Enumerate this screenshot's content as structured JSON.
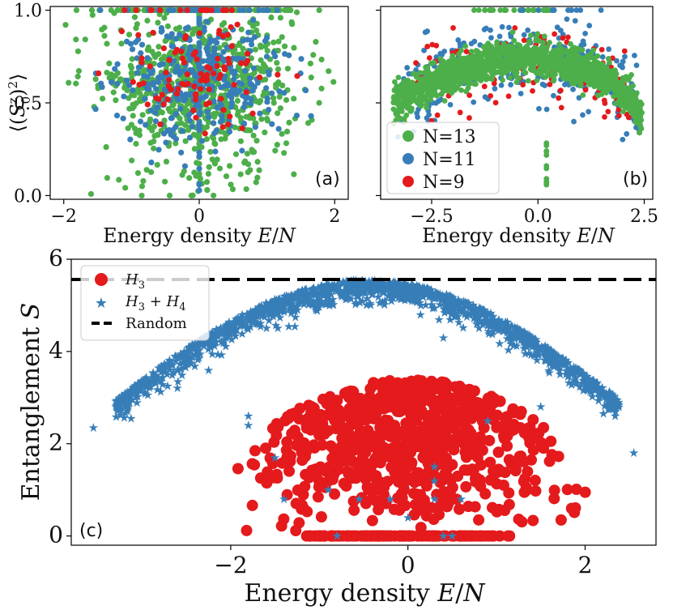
{
  "colors": {
    "n13": "#4daf4a",
    "n11": "#377eb8",
    "n9": "#e41a1c",
    "h3": "#e41a1c",
    "h34": "#377eb8",
    "random": "#000000"
  },
  "chart_data": [
    {
      "id": "a",
      "type": "scatter",
      "panel_label": "(a)",
      "xlabel": "Energy density E/N",
      "ylabel": "⟨(S_0^z)^2⟩",
      "xlim": [
        -2.2,
        2.2
      ],
      "ylim": [
        -0.02,
        1.02
      ],
      "xticks": [
        -2,
        0,
        2
      ],
      "xtick_labels": [
        "−2",
        "0",
        "2"
      ],
      "yticks": [
        0.0,
        0.5,
        1.0
      ],
      "ytick_labels": [
        "0.0",
        "0.5",
        "1.0"
      ],
      "series": [
        {
          "name": "N=13",
          "color": "n13",
          "n": 900,
          "xrange": [
            -2.0,
            2.0
          ],
          "ycenter": 0.55,
          "yspread": 0.45,
          "note": "broad cloud spanning 0 to 1"
        },
        {
          "name": "N=11",
          "color": "n11",
          "n": 380,
          "xrange": [
            -1.8,
            1.8
          ],
          "ycenter": 0.6,
          "yspread": 0.35,
          "note": "cloud 0.2 to 1.0, column at E=0"
        },
        {
          "name": "N=9",
          "color": "n9",
          "n": 110,
          "xrange": [
            -1.6,
            1.6
          ],
          "ycenter": 0.6,
          "yspread": 0.3,
          "note": "sparse, 0.3 to 1.0"
        }
      ]
    },
    {
      "id": "b",
      "type": "scatter",
      "panel_label": "(b)",
      "xlabel": "Energy density E/N",
      "xlim": [
        -3.7,
        2.7
      ],
      "ylim": [
        -0.02,
        1.02
      ],
      "xticks": [
        -2.5,
        0.0,
        2.5
      ],
      "xtick_labels": [
        "−2.5",
        "0.0",
        "2.5"
      ],
      "legend": {
        "location": "lower-left",
        "entries": [
          "N=13",
          "N=11",
          "N=9"
        ]
      },
      "series": [
        {
          "name": "N=13",
          "color": "n13",
          "n": 1500,
          "band": "arch from 0.5 at E=-3.4 up to 0.72 near E=0.7, down to 0.48 at E=2.4",
          "extra": "column at E=0.2 from 0.0 to 0.3, points at 1.0 near E=-1.5..0.5"
        },
        {
          "name": "N=11",
          "color": "n11",
          "n": 350,
          "band": "arch with wider spread 0.3 to 0.85"
        },
        {
          "name": "N=9",
          "color": "n9",
          "n": 120,
          "band": "arch with wider spread 0.3 to 0.85"
        }
      ]
    },
    {
      "id": "c",
      "type": "scatter",
      "panel_label": "(c)",
      "xlabel": "Energy density E/N",
      "ylabel": "Entanglement S",
      "xlim": [
        -3.8,
        2.8
      ],
      "ylim": [
        -0.2,
        6.0
      ],
      "xticks": [
        -2,
        0,
        2
      ],
      "xtick_labels": [
        "−2",
        "0",
        "2"
      ],
      "yticks": [
        0,
        2,
        4,
        6
      ],
      "ytick_labels": [
        "0",
        "2",
        "4",
        "6"
      ],
      "legend": {
        "location": "top-left",
        "entries": [
          "H3",
          "H3 + H4",
          "Random"
        ]
      },
      "random_line": 5.56,
      "series": [
        {
          "name": "H3",
          "marker": "circle",
          "color": "h3",
          "n": 900,
          "shape": "dome: S_max ~ 3.4 at E=0, edges at E=+-2.1, base at S=0 for |E|<1.2"
        },
        {
          "name": "H3 + H4",
          "marker": "star",
          "color": "h34",
          "n": 1400,
          "shape": "arch: S ~ 2.9 at E=-3.3 rising to ~5.5 at E=0, down to ~2.9 at E=2.4; outliers"
        }
      ]
    }
  ],
  "text": {
    "a_label": "(a)",
    "b_label": "(b)",
    "c_label": "(c)",
    "a_xlabel": "Energy density E/N",
    "b_xlabel": "Energy density E/N",
    "c_xlabel": "Energy density E/N",
    "a_ylabel": "⟨(S_0^z)^2⟩",
    "c_ylabel": "Entanglement S",
    "leg_b": [
      "N=13",
      "N=11",
      "N=9"
    ],
    "leg_c": [
      "H3",
      "H3 + H4",
      "Random"
    ]
  }
}
